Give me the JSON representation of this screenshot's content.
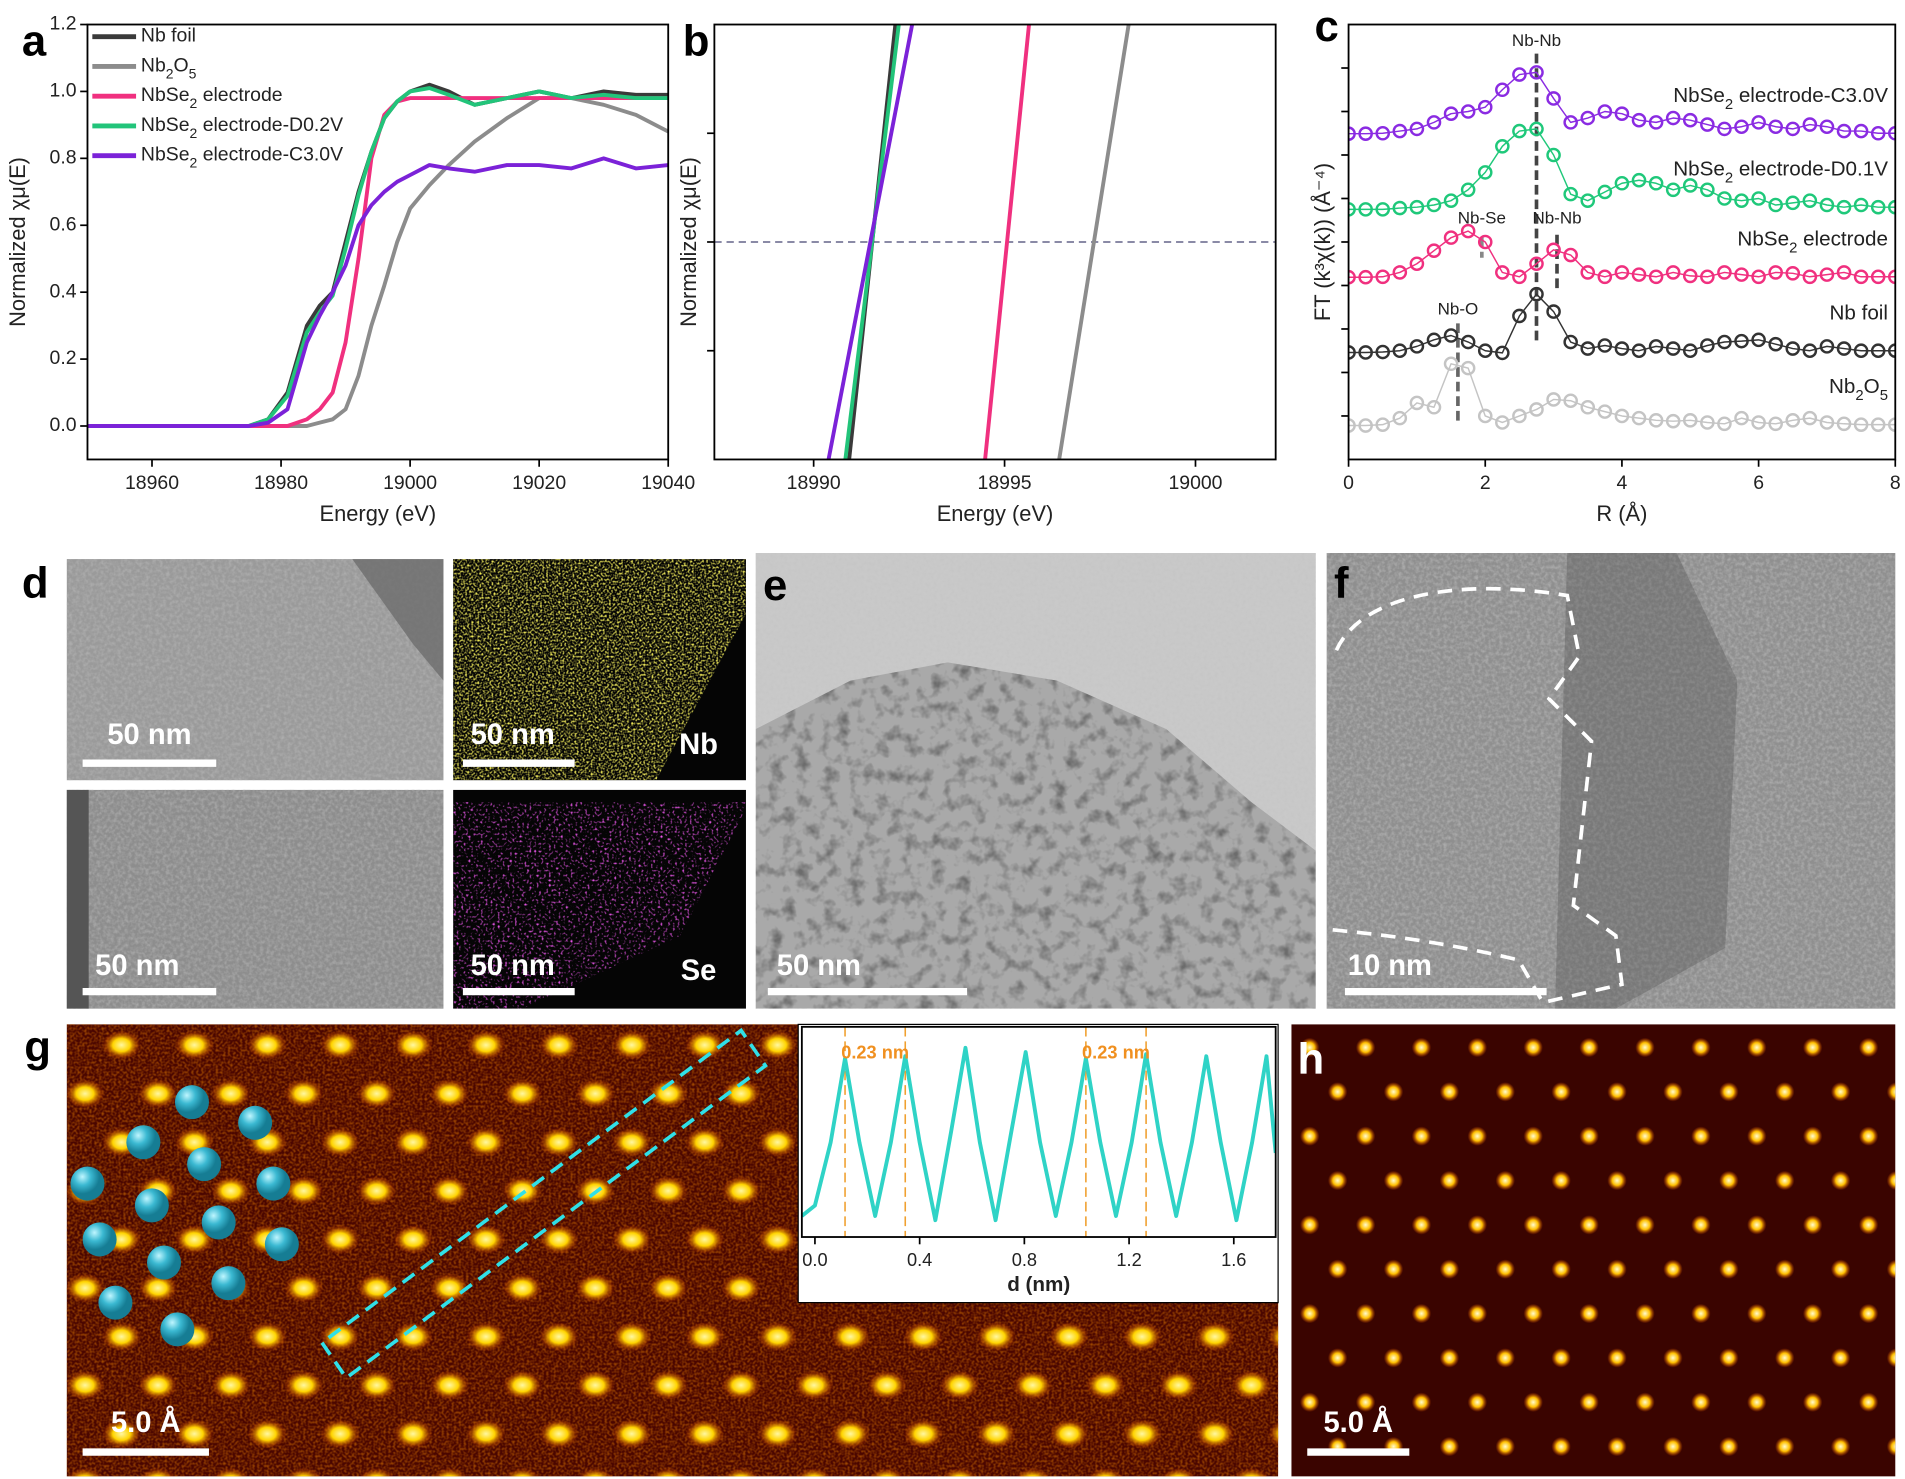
{
  "chart_data": [
    {
      "type": "line",
      "x_label": "Energy (eV)",
      "y_label": "Normalized χμ(E)",
      "legend": "upper left",
      "xlim": [
        18950,
        19040
      ],
      "ylim": [
        -0.1,
        1.2
      ],
      "xticks": [
        18960,
        18980,
        19000,
        19020,
        19040
      ],
      "yticks": [
        {
          "value": 0,
          "label": "0.0"
        },
        0.2,
        0.4,
        0.6,
        0.8,
        {
          "value": 1,
          "label": "1.0"
        },
        1.2
      ],
      "x": [
        18950,
        18975,
        18978,
        18981,
        18984,
        18986,
        18988,
        18990,
        18992,
        18994,
        18996,
        18998,
        19000,
        19003,
        19006,
        19010,
        19015,
        19020,
        19025,
        19030,
        19035,
        19040
      ],
      "series": [
        {
          "name": "Nb foil",
          "color": "#3a3a3a",
          "values": [
            0,
            0,
            0.02,
            0.1,
            0.3,
            0.36,
            0.4,
            0.55,
            0.7,
            0.82,
            0.92,
            0.97,
            1.0,
            1.02,
            1.0,
            0.96,
            0.98,
            1.0,
            0.98,
            1.0,
            0.99,
            0.99
          ]
        },
        {
          "name": "Nb2O5",
          "color": "#8c8c8c",
          "values": [
            0,
            0,
            0,
            0,
            0,
            0.01,
            0.02,
            0.05,
            0.15,
            0.3,
            0.42,
            0.55,
            0.65,
            0.72,
            0.78,
            0.85,
            0.92,
            0.98,
            0.98,
            0.96,
            0.93,
            0.88
          ]
        },
        {
          "name": "NbSe2 electrode",
          "color": "#f0307f",
          "values": [
            0,
            0,
            0,
            0,
            0.02,
            0.05,
            0.1,
            0.25,
            0.5,
            0.8,
            0.93,
            0.97,
            0.98,
            0.98,
            0.98,
            0.98,
            0.98,
            0.98,
            0.98,
            0.98,
            0.98,
            0.98
          ]
        },
        {
          "name": "NbSe2 electrode-D0.2V",
          "color": "#22c47a",
          "values": [
            0,
            0,
            0.02,
            0.09,
            0.28,
            0.34,
            0.39,
            0.53,
            0.69,
            0.82,
            0.92,
            0.97,
            1.0,
            1.01,
            0.99,
            0.96,
            0.98,
            1.0,
            0.98,
            0.99,
            0.98,
            0.98
          ]
        },
        {
          "name": "NbSe2 electrode-C3.0V",
          "color": "#7b22d8",
          "values": [
            0,
            0,
            0.01,
            0.05,
            0.25,
            0.33,
            0.4,
            0.48,
            0.6,
            0.66,
            0.7,
            0.73,
            0.75,
            0.78,
            0.77,
            0.76,
            0.78,
            0.78,
            0.77,
            0.8,
            0.77,
            0.78
          ]
        }
      ]
    },
    {
      "type": "line",
      "x_label": "Energy (eV)",
      "y_label": "Normalized χμ(E)",
      "ytick_labels": false,
      "xlim": [
        18987.4,
        19002.1
      ],
      "ylim": [
        0.4,
        0.6
      ],
      "xticks": [
        18990,
        18995,
        19000
      ],
      "yticks": [
        0.45,
        0.5,
        0.55
      ],
      "hline": 0.5,
      "series": [
        {
          "name": "Nb foil",
          "color": "#3a3a3a",
          "x": [
            18990.93,
            18992.14
          ],
          "values": [
            0.4,
            0.6
          ]
        },
        {
          "name": "Nb2O5",
          "color": "#8c8c8c",
          "x": [
            18996.43,
            18998.25
          ],
          "values": [
            0.4,
            0.6
          ]
        },
        {
          "name": "NbSe2 electrode",
          "color": "#f0307f",
          "x": [
            18994.49,
            18995.64
          ],
          "values": [
            0.4,
            0.6
          ]
        },
        {
          "name": "NbSe2 electrode-D0.2V",
          "color": "#22c47a",
          "x": [
            18990.83,
            18992.23
          ],
          "values": [
            0.4,
            0.6
          ]
        },
        {
          "name": "NbSe2 electrode-C3.0V",
          "color": "#7b22d8",
          "x": [
            18990.39,
            18992.58
          ],
          "values": [
            0.4,
            0.6
          ]
        }
      ]
    },
    {
      "type": "line",
      "marker": "open-circle",
      "x_label": "R (Å)",
      "y_label": "FT (k³χ(k)) (Å⁻⁴)",
      "ytick_labels": false,
      "legend": "inline-right",
      "xlim": [
        0,
        8
      ],
      "ylim": [
        0,
        10
      ],
      "xticks": [
        0,
        2,
        4,
        6,
        8
      ],
      "yticks": [
        1,
        2,
        3,
        4,
        5,
        6,
        7,
        8,
        9
      ],
      "x": [
        0,
        0.25,
        0.5,
        0.75,
        1,
        1.25,
        1.5,
        1.75,
        2,
        2.25,
        2.5,
        2.75,
        3,
        3.25,
        3.5,
        3.75,
        4,
        4.25,
        4.5,
        4.75,
        5,
        5.25,
        5.5,
        5.75,
        6,
        6.25,
        6.5,
        6.75,
        7,
        7.25,
        7.5,
        7.75,
        8
      ],
      "series": [
        {
          "name": "NbSe2 electrode-C3.0V",
          "color": "#8a2be2",
          "values": [
            7.49,
            7.49,
            7.5,
            7.55,
            7.6,
            7.75,
            7.95,
            8.0,
            8.1,
            8.5,
            8.85,
            8.9,
            8.3,
            7.75,
            7.85,
            8.0,
            7.95,
            7.8,
            7.75,
            7.85,
            7.8,
            7.7,
            7.6,
            7.65,
            7.75,
            7.65,
            7.6,
            7.7,
            7.65,
            7.55,
            7.55,
            7.5,
            7.5
          ]
        },
        {
          "name": "NbSe2 electrode-D0.1V",
          "color": "#1fc87a",
          "values": [
            5.75,
            5.75,
            5.75,
            5.78,
            5.8,
            5.85,
            5.95,
            6.2,
            6.6,
            7.2,
            7.55,
            7.6,
            7.0,
            6.1,
            5.95,
            6.15,
            6.35,
            6.42,
            6.35,
            6.2,
            6.3,
            6.2,
            6.0,
            5.95,
            6.0,
            5.85,
            5.9,
            5.95,
            5.85,
            5.8,
            5.85,
            5.8,
            5.8
          ]
        },
        {
          "name": "NbSe2 electrode",
          "color": "#f0307f",
          "values": [
            4.19,
            4.19,
            4.2,
            4.3,
            4.5,
            4.8,
            5.1,
            5.25,
            5.0,
            4.3,
            4.2,
            4.5,
            4.82,
            4.7,
            4.3,
            4.2,
            4.3,
            4.25,
            4.2,
            4.3,
            4.22,
            4.2,
            4.3,
            4.25,
            4.2,
            4.3,
            4.28,
            4.2,
            4.25,
            4.3,
            4.2,
            4.2,
            4.2
          ]
        },
        {
          "name": "Nb foil",
          "color": "#333333",
          "values": [
            2.46,
            2.46,
            2.47,
            2.5,
            2.6,
            2.75,
            2.85,
            2.7,
            2.5,
            2.45,
            3.3,
            3.8,
            3.4,
            2.7,
            2.55,
            2.62,
            2.55,
            2.5,
            2.6,
            2.55,
            2.5,
            2.62,
            2.7,
            2.72,
            2.75,
            2.65,
            2.55,
            2.5,
            2.6,
            2.55,
            2.5,
            2.5,
            2.5
          ]
        },
        {
          "name": "Nb2O5",
          "color": "#c4c4c4",
          "values": [
            0.78,
            0.78,
            0.8,
            0.95,
            1.3,
            1.2,
            2.2,
            2.1,
            1.0,
            0.85,
            1.0,
            1.15,
            1.38,
            1.35,
            1.2,
            1.1,
            1.0,
            0.95,
            0.9,
            0.88,
            0.9,
            0.85,
            0.82,
            0.95,
            0.85,
            0.82,
            0.9,
            0.95,
            0.85,
            0.82,
            0.8,
            0.8,
            0.8
          ]
        }
      ],
      "annotations": [
        {
          "text": "Nb-Nb",
          "x": 2.75
        },
        {
          "text": "Nb-Se",
          "x": 1.95
        },
        {
          "text": "Nb-Nb",
          "x": 3.05
        },
        {
          "text": "Nb-O",
          "x": 1.6
        }
      ]
    },
    {
      "type": "line",
      "x_label": "d (nm)",
      "xlim": [
        -0.05,
        1.76
      ],
      "ylim": [
        0,
        1
      ],
      "xticks": [
        {
          "value": 0,
          "label": "0.0"
        },
        0.4,
        0.8,
        1.2,
        1.6
      ],
      "x": [
        -0.05,
        0.0,
        0.06,
        0.115,
        0.17,
        0.23,
        0.29,
        0.345,
        0.4,
        0.46,
        0.52,
        0.575,
        0.63,
        0.69,
        0.75,
        0.805,
        0.86,
        0.92,
        0.98,
        1.035,
        1.09,
        1.15,
        1.21,
        1.265,
        1.32,
        1.38,
        1.44,
        1.495,
        1.55,
        1.61,
        1.67,
        1.725,
        1.76
      ],
      "series": [
        {
          "color": "#2fd3c6",
          "values": [
            0.1,
            0.15,
            0.45,
            0.85,
            0.45,
            0.1,
            0.45,
            0.86,
            0.45,
            0.08,
            0.5,
            0.9,
            0.45,
            0.08,
            0.5,
            0.88,
            0.45,
            0.1,
            0.45,
            0.85,
            0.45,
            0.1,
            0.45,
            0.87,
            0.45,
            0.1,
            0.45,
            0.86,
            0.45,
            0.08,
            0.45,
            0.86,
            0.4
          ]
        }
      ],
      "annotations": [
        {
          "text": "0.23 nm",
          "x": [
            0.115,
            0.345
          ]
        },
        {
          "text": "0.23 nm",
          "x": [
            1.035,
            1.265
          ]
        }
      ]
    }
  ],
  "panel_labels": [
    "a",
    "b",
    "c",
    "d",
    "e",
    "f",
    "g",
    "h"
  ],
  "images": {
    "d": {
      "scale_bars": [
        "50 nm",
        "50 nm",
        "50 nm",
        "50 nm"
      ],
      "elements": [
        "Nb",
        "Se"
      ]
    },
    "e": {
      "scale_bar": "50 nm"
    },
    "f": {
      "scale_bar": "10 nm"
    },
    "g": {
      "scale_bar": "5.0 Å"
    },
    "h": {
      "scale_bar": "5.0 Å"
    }
  }
}
